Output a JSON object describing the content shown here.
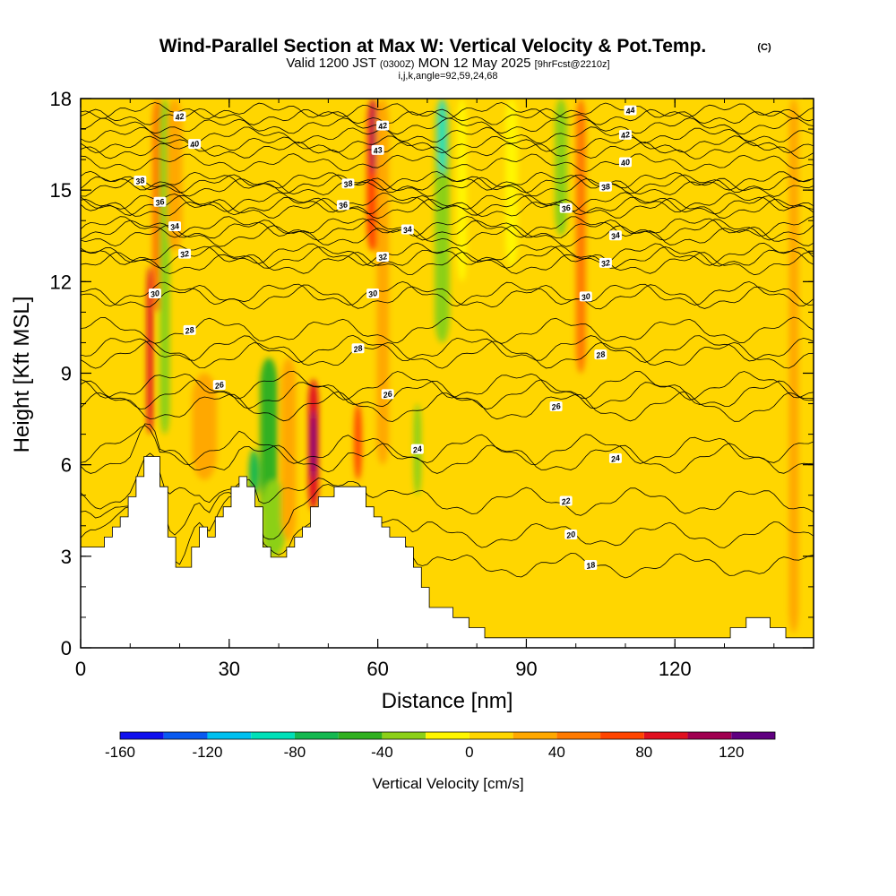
{
  "title": {
    "main": "Wind-Parallel Section at Max W: Vertical Velocity & Pot.Temp.",
    "tag": "(C)",
    "valid_prefix": "Valid 1200 JST",
    "valid_z": "(0300Z)",
    "valid_date": "MON 12 May 2025",
    "forecast": "[9hrFcst@2210z]",
    "indices": "i,j,k,angle=92,59,24,68"
  },
  "chart_data": {
    "type": "heatmap",
    "xlabel": "Distance [nm]",
    "ylabel": "Height [Kft MSL]",
    "xlim": [
      0,
      148
    ],
    "ylim": [
      0,
      18
    ],
    "x_ticks": [
      0,
      30,
      60,
      90,
      120
    ],
    "y_ticks": [
      0,
      3,
      6,
      9,
      12,
      15,
      18
    ],
    "grid": false,
    "colorbar": {
      "title": "Vertical Velocity [cm/s]",
      "tick_values": [
        -160,
        -120,
        -80,
        -40,
        0,
        40,
        80,
        120
      ],
      "bins": [
        -160,
        -140,
        -120,
        -100,
        -80,
        -60,
        -40,
        -20,
        0,
        20,
        40,
        60,
        80,
        100,
        120,
        140
      ],
      "colors": [
        "#1010ee",
        "#0a5af0",
        "#00c0f0",
        "#00e0b8",
        "#14b850",
        "#30b020",
        "#8cd018",
        "#fff600",
        "#ffd600",
        "#ffa800",
        "#ff7a00",
        "#ff4500",
        "#e01020",
        "#a00050",
        "#600080"
      ]
    },
    "terrain_kft": [
      [
        0,
        3.3
      ],
      [
        3,
        3.3
      ],
      [
        5,
        3.8
      ],
      [
        8,
        4.3
      ],
      [
        10,
        5.0
      ],
      [
        12,
        6.0
      ],
      [
        13.5,
        6.6
      ],
      [
        15,
        6.2
      ],
      [
        16,
        5.2
      ],
      [
        17,
        4.2
      ],
      [
        18,
        3.2
      ],
      [
        19,
        2.6
      ],
      [
        20,
        2.3
      ],
      [
        21,
        2.6
      ],
      [
        22,
        3.2
      ],
      [
        23,
        3.8
      ],
      [
        24,
        4.1
      ],
      [
        25,
        3.8
      ],
      [
        26,
        3.6
      ],
      [
        28,
        4.5
      ],
      [
        30,
        5.2
      ],
      [
        32,
        5.6
      ],
      [
        34,
        5.3
      ],
      [
        35,
        4.8
      ],
      [
        36,
        3.8
      ],
      [
        37,
        3.0
      ],
      [
        40,
        3.0
      ],
      [
        42,
        3.2
      ],
      [
        43,
        3.7
      ],
      [
        44.5,
        4.0
      ],
      [
        46,
        4.4
      ],
      [
        48,
        4.8
      ],
      [
        50,
        5.1
      ],
      [
        52,
        5.4
      ],
      [
        54,
        5.5
      ],
      [
        56,
        5.2
      ],
      [
        58,
        4.6
      ],
      [
        60,
        4.2
      ],
      [
        62,
        3.8
      ],
      [
        64,
        3.5
      ],
      [
        66,
        3.1
      ],
      [
        68,
        2.2
      ],
      [
        70,
        1.5
      ],
      [
        72,
        1.2
      ],
      [
        74,
        1.2
      ],
      [
        76,
        1.0
      ],
      [
        78,
        0.8
      ],
      [
        80,
        0.6
      ],
      [
        82,
        0.4
      ],
      [
        84,
        0.2
      ],
      [
        87,
        0.2
      ],
      [
        90,
        0.3
      ],
      [
        92,
        0.3
      ],
      [
        100,
        0.3
      ],
      [
        110,
        0.3
      ],
      [
        125,
        0.3
      ],
      [
        130,
        0.3
      ],
      [
        132,
        0.7
      ],
      [
        134,
        1.0
      ],
      [
        138,
        1.0
      ],
      [
        140,
        0.6
      ],
      [
        142,
        0.5
      ],
      [
        144,
        0.3
      ],
      [
        148,
        0.3
      ]
    ],
    "theta_contours": [
      {
        "label": "18",
        "base_kft": 2.7,
        "label_x": 103
      },
      {
        "label": "20",
        "base_kft": 3.7,
        "label_x": 99
      },
      {
        "label": "22",
        "base_kft": 4.8,
        "label_x": 98
      },
      {
        "label": "24",
        "base_kft": 6.2,
        "label_x": 108
      },
      {
        "label": "24",
        "base_kft": 6.5,
        "label_x": 68
      },
      {
        "label": "26",
        "base_kft": 7.9,
        "label_x": 96
      },
      {
        "label": "26",
        "base_kft": 8.3,
        "label_x": 62
      },
      {
        "label": "26",
        "base_kft": 8.6,
        "label_x": 28
      },
      {
        "label": "28",
        "base_kft": 9.6,
        "label_x": 105
      },
      {
        "label": "28",
        "base_kft": 9.8,
        "label_x": 56
      },
      {
        "label": "28",
        "base_kft": 10.4,
        "label_x": 22
      },
      {
        "label": "30",
        "base_kft": 11.5,
        "label_x": 102
      },
      {
        "label": "30",
        "base_kft": 11.6,
        "label_x": 59
      },
      {
        "label": "30",
        "base_kft": 11.6,
        "label_x": 15
      },
      {
        "label": "32",
        "base_kft": 12.6,
        "label_x": 106
      },
      {
        "label": "32",
        "base_kft": 12.8,
        "label_x": 61
      },
      {
        "label": "32",
        "base_kft": 12.9,
        "label_x": 21
      },
      {
        "label": "34",
        "base_kft": 13.5,
        "label_x": 108
      },
      {
        "label": "34",
        "base_kft": 13.7,
        "label_x": 66
      },
      {
        "label": "34",
        "base_kft": 13.8,
        "label_x": 19
      },
      {
        "label": "36",
        "base_kft": 14.4,
        "label_x": 98
      },
      {
        "label": "36",
        "base_kft": 14.5,
        "label_x": 53
      },
      {
        "label": "36",
        "base_kft": 14.6,
        "label_x": 16
      },
      {
        "label": "38",
        "base_kft": 15.1,
        "label_x": 106
      },
      {
        "label": "38",
        "base_kft": 15.2,
        "label_x": 54
      },
      {
        "label": "38",
        "base_kft": 15.3,
        "label_x": 12
      },
      {
        "label": "40",
        "base_kft": 15.9,
        "label_x": 110
      },
      {
        "label": "40",
        "base_kft": 16.5,
        "label_x": 23
      },
      {
        "label": "42",
        "base_kft": 16.8,
        "label_x": 110
      },
      {
        "label": "42",
        "base_kft": 17.1,
        "label_x": 61
      },
      {
        "label": "42",
        "base_kft": 17.4,
        "label_x": 20
      },
      {
        "label": "43",
        "base_kft": 16.3,
        "label_x": 60
      },
      {
        "label": "44",
        "base_kft": 17.6,
        "label_x": 111
      }
    ],
    "w_features": [
      {
        "x": 14,
        "y0": 7.0,
        "y1": 12.5,
        "w": 1.2,
        "vel": 90
      },
      {
        "x": 15.5,
        "y0": 11.0,
        "y1": 18,
        "w": 2.0,
        "vel": 50
      },
      {
        "x": 17,
        "y0": 7.0,
        "y1": 18,
        "w": 2.0,
        "vel": -40
      },
      {
        "x": 19,
        "y0": 13.0,
        "y1": 18,
        "w": 3.0,
        "vel": 20
      },
      {
        "x": 25,
        "y0": 5.5,
        "y1": 9.0,
        "w": 5.0,
        "vel": 30
      },
      {
        "x": 38,
        "y0": 4.0,
        "y1": 9.5,
        "w": 3.5,
        "vel": -60
      },
      {
        "x": 39,
        "y0": 3.0,
        "y1": 5.5,
        "w": 5.0,
        "vel": -40
      },
      {
        "x": 35,
        "y0": 5.0,
        "y1": 6.5,
        "w": 2.0,
        "vel": -80
      },
      {
        "x": 42,
        "y0": 3.5,
        "y1": 9.5,
        "w": 3.0,
        "vel": 30
      },
      {
        "x": 47,
        "y0": 4.5,
        "y1": 8.8,
        "w": 2.0,
        "vel": 80
      },
      {
        "x": 47,
        "y0": 5.5,
        "y1": 7.8,
        "w": 1.0,
        "vel": 130
      },
      {
        "x": 56,
        "y0": 5.5,
        "y1": 8.0,
        "w": 1.5,
        "vel": 70
      },
      {
        "x": 59,
        "y0": 13.0,
        "y1": 18,
        "w": 2.5,
        "vel": 70
      },
      {
        "x": 59,
        "y0": 15.5,
        "y1": 18,
        "w": 1.0,
        "vel": 110
      },
      {
        "x": 61,
        "y0": 6.0,
        "y1": 18,
        "w": 2.5,
        "vel": 30
      },
      {
        "x": 73,
        "y0": 10.0,
        "y1": 18,
        "w": 3.0,
        "vel": -40
      },
      {
        "x": 73,
        "y0": 15.5,
        "y1": 18,
        "w": 1.5,
        "vel": -90
      },
      {
        "x": 77,
        "y0": 12.0,
        "y1": 18,
        "w": 2.0,
        "vel": -20
      },
      {
        "x": 87,
        "y0": 12.5,
        "y1": 18,
        "w": 2.5,
        "vel": -20
      },
      {
        "x": 97,
        "y0": 13.5,
        "y1": 18,
        "w": 2.5,
        "vel": -40
      },
      {
        "x": 101,
        "y0": 9.0,
        "y1": 18,
        "w": 2.0,
        "vel": 40
      },
      {
        "x": 68,
        "y0": 5.0,
        "y1": 8.0,
        "w": 1.5,
        "vel": -40
      },
      {
        "x": 110,
        "y0": 0.5,
        "y1": 12.0,
        "w": 4.0,
        "vel": 10
      },
      {
        "x": 136,
        "y0": 0.5,
        "y1": 18,
        "w": 3.0,
        "vel": 10
      },
      {
        "x": 144,
        "y0": 0.5,
        "y1": 18,
        "w": 2.0,
        "vel": 20
      }
    ]
  }
}
